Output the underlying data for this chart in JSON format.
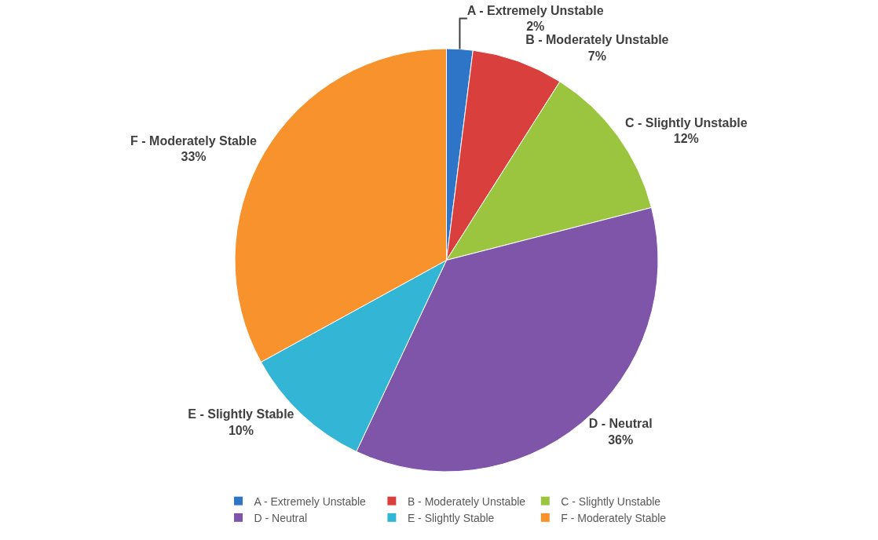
{
  "chart_data": {
    "type": "pie",
    "categories": [
      "A - Extremely Unstable",
      "B - Moderately Unstable",
      "C - Slightly Unstable",
      "D - Neutral",
      "E - Slightly Stable",
      "F - Moderately Stable"
    ],
    "values": [
      2,
      7,
      12,
      36,
      10,
      33
    ],
    "value_labels": [
      "2%",
      "7%",
      "12%",
      "36%",
      "10%",
      "33%"
    ],
    "colors": [
      "#2e75c8",
      "#d9403d",
      "#9bc43f",
      "#7e55a8",
      "#33b5d6",
      "#f7922d"
    ],
    "legend": "bottom"
  }
}
